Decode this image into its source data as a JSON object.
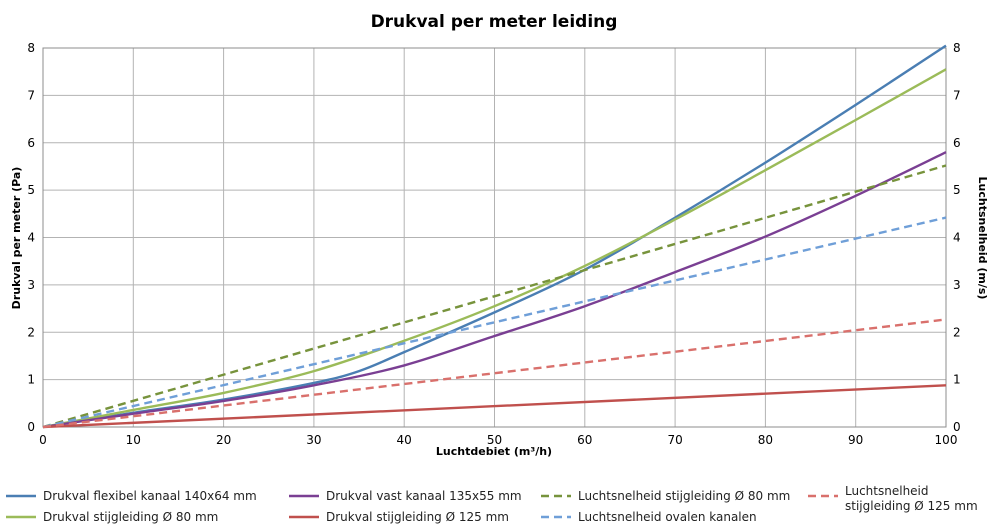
{
  "chart_data": {
    "type": "line",
    "title": "Drukval per meter leiding",
    "xlabel": "Luchtdebiet (m³/h)",
    "ylabel_left": "Drukval per meter (Pa)",
    "ylabel_right": "Luchtsnelheid (m/s)",
    "xlim": [
      0,
      100
    ],
    "ylim": [
      0,
      8
    ],
    "x_ticks": [
      "0",
      "10",
      "20",
      "30",
      "40",
      "50",
      "60",
      "70",
      "80",
      "90",
      "100"
    ],
    "y_ticks": [
      "0",
      "1",
      "2",
      "3",
      "4",
      "5",
      "6",
      "7",
      "8"
    ],
    "y_ticks_right": [
      "0",
      "1",
      "2",
      "3",
      "4",
      "5",
      "6",
      "7",
      "8"
    ],
    "grid": true,
    "legend_position": "bottom",
    "series": [
      {
        "name": "Drukval flexibel kanaal 140x64 mm",
        "color": "#4a7eb3",
        "dash": "solid",
        "points": [
          [
            0,
            0
          ],
          [
            10,
            0.3
          ],
          [
            20,
            0.58
          ],
          [
            30,
            0.93
          ],
          [
            35,
            1.18
          ],
          [
            40,
            1.58
          ],
          [
            50,
            2.42
          ],
          [
            60,
            3.32
          ],
          [
            70,
            4.42
          ],
          [
            80,
            5.58
          ],
          [
            90,
            6.8
          ],
          [
            100,
            8.05
          ]
        ]
      },
      {
        "name": "Drukval stijgleiding Ø 80 mm",
        "color": "#9bbb59",
        "dash": "solid",
        "points": [
          [
            0,
            0
          ],
          [
            10,
            0.36
          ],
          [
            20,
            0.72
          ],
          [
            30,
            1.18
          ],
          [
            40,
            1.82
          ],
          [
            50,
            2.55
          ],
          [
            60,
            3.4
          ],
          [
            70,
            4.38
          ],
          [
            80,
            5.42
          ],
          [
            90,
            6.48
          ],
          [
            100,
            7.55
          ]
        ]
      },
      {
        "name": "Drukval vast kanaal 135x55 mm",
        "color": "#7a3f93",
        "dash": "solid",
        "points": [
          [
            0,
            0
          ],
          [
            10,
            0.28
          ],
          [
            20,
            0.55
          ],
          [
            30,
            0.88
          ],
          [
            40,
            1.3
          ],
          [
            50,
            1.92
          ],
          [
            60,
            2.55
          ],
          [
            70,
            3.27
          ],
          [
            80,
            4.02
          ],
          [
            90,
            4.88
          ],
          [
            100,
            5.8
          ]
        ]
      },
      {
        "name": "Drukval stijgleiding Ø 125 mm",
        "color": "#c0504d",
        "dash": "solid",
        "points": [
          [
            0,
            0
          ],
          [
            100,
            0.88
          ]
        ]
      },
      {
        "name": "Luchtsnelheid stijgleiding Ø 80 mm",
        "color": "#77933c",
        "dash": "dashed",
        "points": [
          [
            0,
            0
          ],
          [
            100,
            5.52
          ]
        ]
      },
      {
        "name": "Luchtsnelheid ovalen kanalen",
        "color": "#6f9fd8",
        "dash": "dashed",
        "points": [
          [
            0,
            0
          ],
          [
            100,
            4.42
          ]
        ]
      },
      {
        "name": "Luchtsnelheid\nstijgleiding Ø 125 mm",
        "color": "#d9706c",
        "dash": "dashed",
        "points": [
          [
            0,
            0
          ],
          [
            100,
            2.27
          ]
        ]
      }
    ]
  }
}
